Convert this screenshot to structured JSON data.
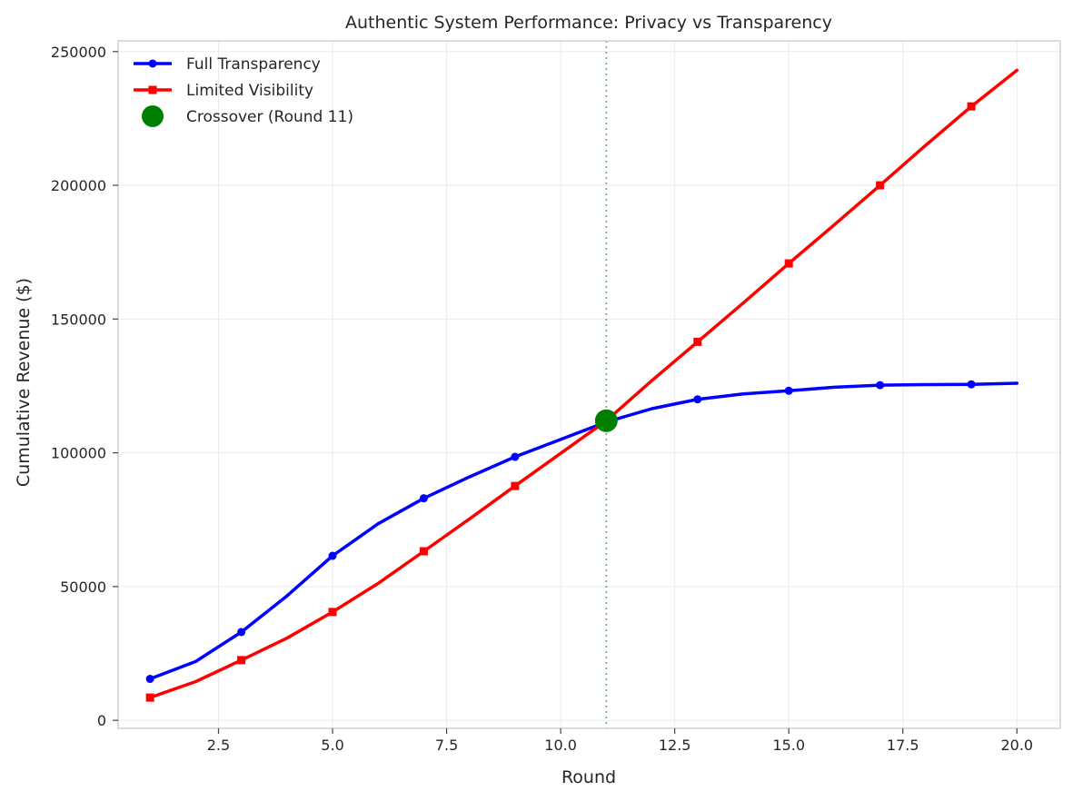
{
  "chart_data": {
    "type": "line",
    "title": "Authentic System Performance: Privacy vs Transparency",
    "xlabel": "Round",
    "ylabel": "Cumulative Revenue ($)",
    "xlim": [
      0.3,
      20.95
    ],
    "ylim": [
      -3000,
      254000
    ],
    "xticks": [
      2.5,
      5.0,
      7.5,
      10.0,
      12.5,
      15.0,
      17.5,
      20.0
    ],
    "xtick_labels": [
      "2.5",
      "5.0",
      "7.5",
      "10.0",
      "12.5",
      "15.0",
      "17.5",
      "20.0"
    ],
    "yticks": [
      0,
      50000,
      100000,
      150000,
      200000,
      250000
    ],
    "ytick_labels": [
      "0",
      "50000",
      "100000",
      "150000",
      "200000",
      "250000"
    ],
    "grid": true,
    "legend_position": "top-left",
    "x": [
      1,
      2,
      3,
      4,
      5,
      6,
      7,
      8,
      9,
      10,
      11,
      12,
      13,
      14,
      15,
      16,
      17,
      18,
      19,
      20
    ],
    "series": [
      {
        "name": "Full Transparency",
        "color": "#0000ff",
        "marker": "circle",
        "markevery": 2,
        "values": [
          15500,
          22000,
          33000,
          46500,
          61500,
          73500,
          83000,
          91000,
          98500,
          105000,
          111500,
          116500,
          120000,
          122000,
          123200,
          124500,
          125300,
          125500,
          125600,
          126000
        ]
      },
      {
        "name": "Limited Visibility",
        "color": "#ff0000",
        "marker": "square",
        "markevery": 2,
        "values": [
          8500,
          14500,
          22500,
          30700,
          40500,
          51200,
          63200,
          75300,
          87600,
          99800,
          112000,
          127000,
          141500,
          156000,
          170800,
          185300,
          200000,
          215000,
          229500,
          243000
        ]
      }
    ],
    "crossover": {
      "label": "Crossover (Round 11)",
      "x": 11,
      "y": 112000,
      "color": "#008000"
    },
    "vline": {
      "x": 11,
      "color": "#2ca02c"
    }
  }
}
